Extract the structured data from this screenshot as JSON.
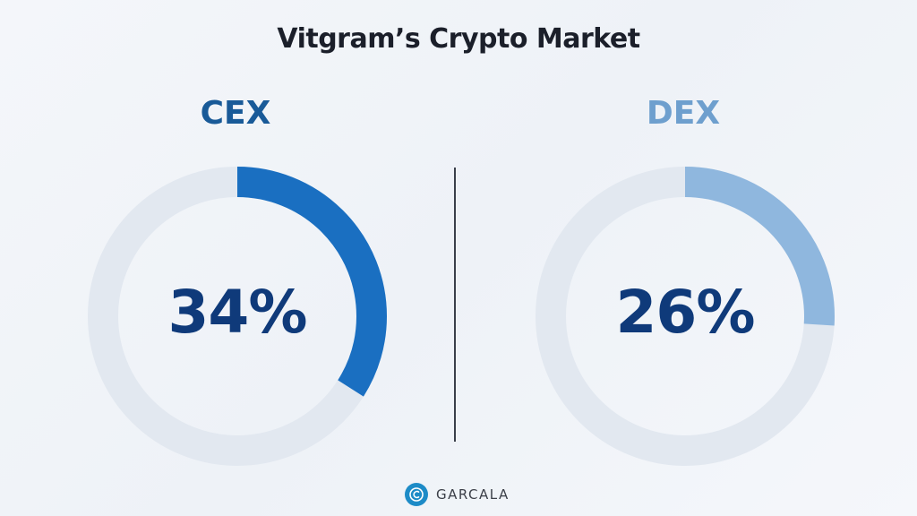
{
  "chart_data": [
    {
      "type": "pie",
      "label": "CEX",
      "value_label": "34%",
      "value": 34,
      "max": 100,
      "color": "#1a6fc1",
      "track_color": "#e2e8f0"
    },
    {
      "type": "pie",
      "label": "DEX",
      "value_label": "26%",
      "value": 26,
      "max": 100,
      "color": "#8fb7de",
      "track_color": "#e2e8f0"
    }
  ],
  "title": "Vitgram’s Crypto Market",
  "labels": {
    "cex": "CEX",
    "dex": "DEX"
  },
  "label_colors": {
    "cex": "#195a98",
    "dex": "#6e9fce"
  },
  "logo": {
    "text": "GARCALA",
    "icon": "coin-icon",
    "color": "#1d8bc7"
  }
}
